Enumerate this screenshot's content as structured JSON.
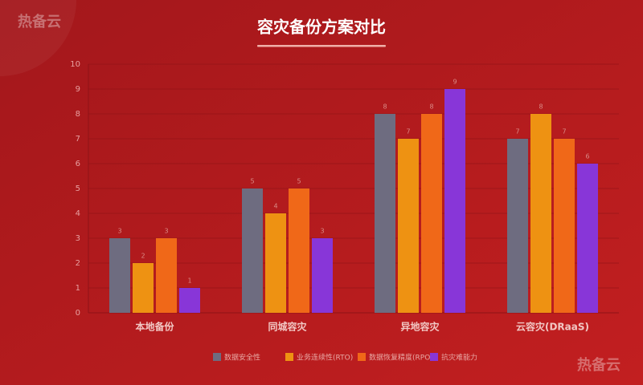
{
  "watermark": "热备云",
  "chart_data": {
    "type": "bar",
    "title": "容灾备份方案对比",
    "categories": [
      "本地备份",
      "同城容灾",
      "异地容灾",
      "云容灾(DRaaS)"
    ],
    "series": [
      {
        "name": "数据安全性",
        "color": "#6e6c80",
        "values": [
          3,
          5,
          8,
          7
        ]
      },
      {
        "name": "业务连续性(RTO)",
        "color": "#ee9212",
        "values": [
          2,
          4,
          7,
          8
        ]
      },
      {
        "name": "数据恢复精度(RPO)",
        "color": "#f06818",
        "values": [
          3,
          5,
          8,
          7
        ]
      },
      {
        "name": "抗灾难能力",
        "color": "#8836d8",
        "values": [
          1,
          3,
          9,
          6
        ]
      }
    ],
    "ylim": [
      0,
      10
    ],
    "yticks": [
      0,
      1,
      2,
      3,
      4,
      5,
      6,
      7,
      8,
      9,
      10
    ],
    "grid": true,
    "legend": "bottom"
  }
}
